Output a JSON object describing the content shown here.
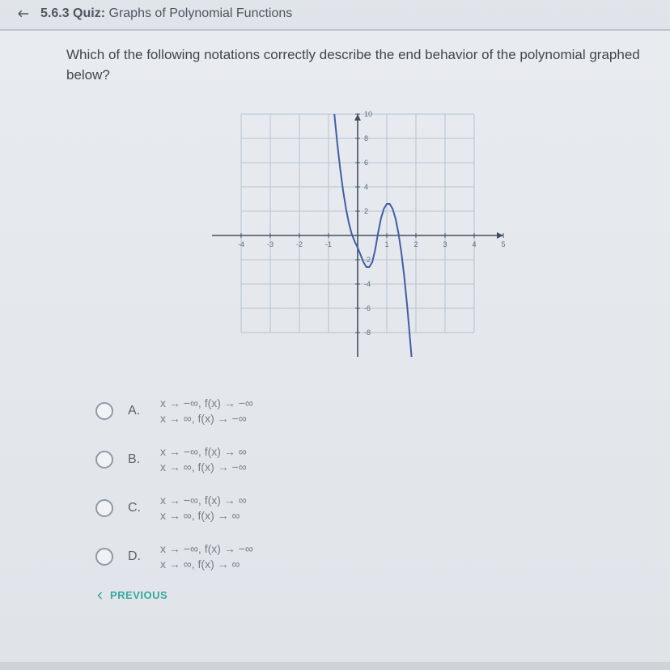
{
  "header": {
    "section_number": "5.6.3",
    "label_prefix": "Quiz:",
    "title": "Graphs of Polynomial Functions"
  },
  "question": {
    "text": "Which of the following notations correctly describe the end behavior of the polynomial graphed below?"
  },
  "graph": {
    "type": "line",
    "x_range": [
      -5,
      5
    ],
    "y_range": [
      -10,
      10
    ],
    "x_ticks": [
      -4,
      -3,
      -2,
      -1,
      1,
      2,
      3,
      4,
      5
    ],
    "y_ticks": [
      -8,
      -6,
      -4,
      -2,
      2,
      4,
      6,
      8,
      10
    ],
    "grid_color": "#b4c4d4",
    "axis_color": "#2a3a4a",
    "curve_color": "#2a4aa0",
    "curve_width": 2,
    "background_color": "#eef0f3",
    "curve_points": [
      [
        -0.8,
        10
      ],
      [
        -0.7,
        7.6
      ],
      [
        -0.6,
        5.5
      ],
      [
        -0.5,
        3.7
      ],
      [
        -0.4,
        2.2
      ],
      [
        -0.3,
        1.0
      ],
      [
        -0.2,
        0.1
      ],
      [
        -0.1,
        -0.5
      ],
      [
        0,
        -1.0
      ],
      [
        0.1,
        -1.6
      ],
      [
        0.2,
        -2.2
      ],
      [
        0.3,
        -2.6
      ],
      [
        0.4,
        -2.6
      ],
      [
        0.5,
        -2.2
      ],
      [
        0.6,
        -1.2
      ],
      [
        0.7,
        0.2
      ],
      [
        0.8,
        1.4
      ],
      [
        0.9,
        2.2
      ],
      [
        1.0,
        2.6
      ],
      [
        1.1,
        2.6
      ],
      [
        1.2,
        2.2
      ],
      [
        1.3,
        1.4
      ],
      [
        1.4,
        0.2
      ],
      [
        1.5,
        -1.4
      ],
      [
        1.6,
        -3.4
      ],
      [
        1.7,
        -5.8
      ],
      [
        1.8,
        -8.6
      ],
      [
        1.85,
        -10
      ]
    ]
  },
  "answers": [
    {
      "letter": "A.",
      "line1": "x → −∞, f(x) → −∞",
      "line2": "x → ∞, f(x) → −∞"
    },
    {
      "letter": "B.",
      "line1": "x → −∞, f(x) → ∞",
      "line2": "x → ∞, f(x) → −∞"
    },
    {
      "letter": "C.",
      "line1": "x → −∞, f(x) → ∞",
      "line2": "x → ∞, f(x) → ∞"
    },
    {
      "letter": "D.",
      "line1": "x → −∞, f(x) → −∞",
      "line2": "x → ∞, f(x) → ∞"
    }
  ],
  "nav": {
    "previous": "PREVIOUS"
  }
}
